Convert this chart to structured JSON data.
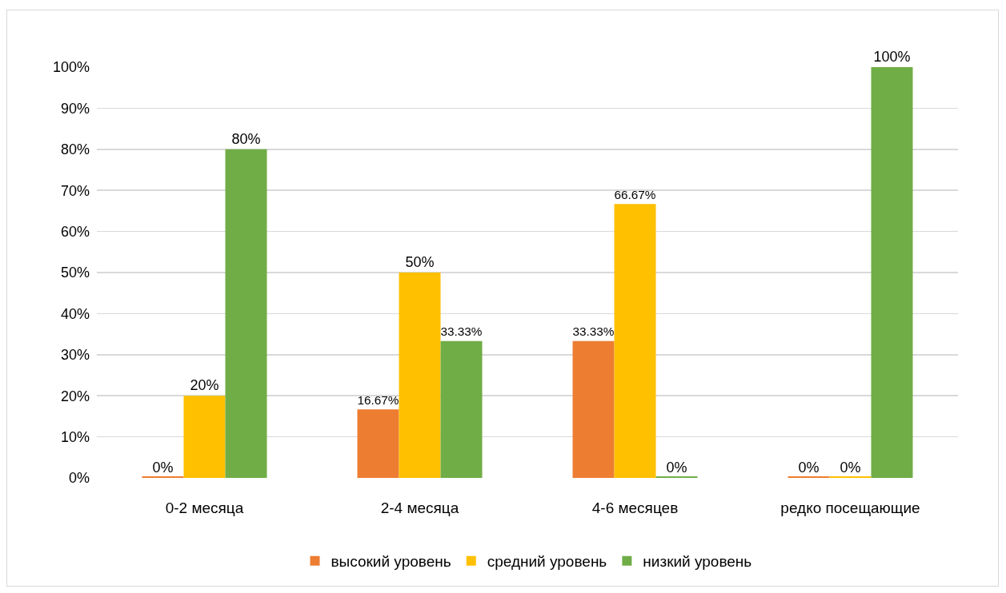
{
  "chart_data": {
    "type": "bar",
    "categories": [
      "0-2 месяца",
      "2-4 месяца",
      "4-6 месяцев",
      "редко посещающие"
    ],
    "series": [
      {
        "name": "высокий уровень",
        "color": "#ed7d31",
        "values": [
          0,
          16.67,
          33.33,
          0
        ],
        "value_labels": [
          "0%",
          "16.67%",
          "33.33%",
          "0%"
        ]
      },
      {
        "name": "средний уровень",
        "color": "#ffc000",
        "values": [
          20,
          50,
          66.67,
          0
        ],
        "value_labels": [
          "20%",
          "50%",
          "66.67%",
          "0%"
        ]
      },
      {
        "name": "низкий уровень",
        "color": "#70ad47",
        "values": [
          80,
          33.33,
          0,
          100
        ],
        "value_labels": [
          "80%",
          "33.33%",
          "0%",
          "100%"
        ]
      }
    ],
    "ylim": [
      0,
      100
    ],
    "yticks": [
      {
        "value": 0,
        "label": "0%"
      },
      {
        "value": 10,
        "label": "10%"
      },
      {
        "value": 20,
        "label": "20%"
      },
      {
        "value": 30,
        "label": "30%"
      },
      {
        "value": 40,
        "label": "40%"
      },
      {
        "value": 50,
        "label": "50%"
      },
      {
        "value": 60,
        "label": "60%"
      },
      {
        "value": 70,
        "label": "70%"
      },
      {
        "value": 80,
        "label": "80%"
      },
      {
        "value": 90,
        "label": "90%"
      },
      {
        "value": 100,
        "label": "100%"
      }
    ],
    "grid": "y",
    "legend": "bottom"
  }
}
